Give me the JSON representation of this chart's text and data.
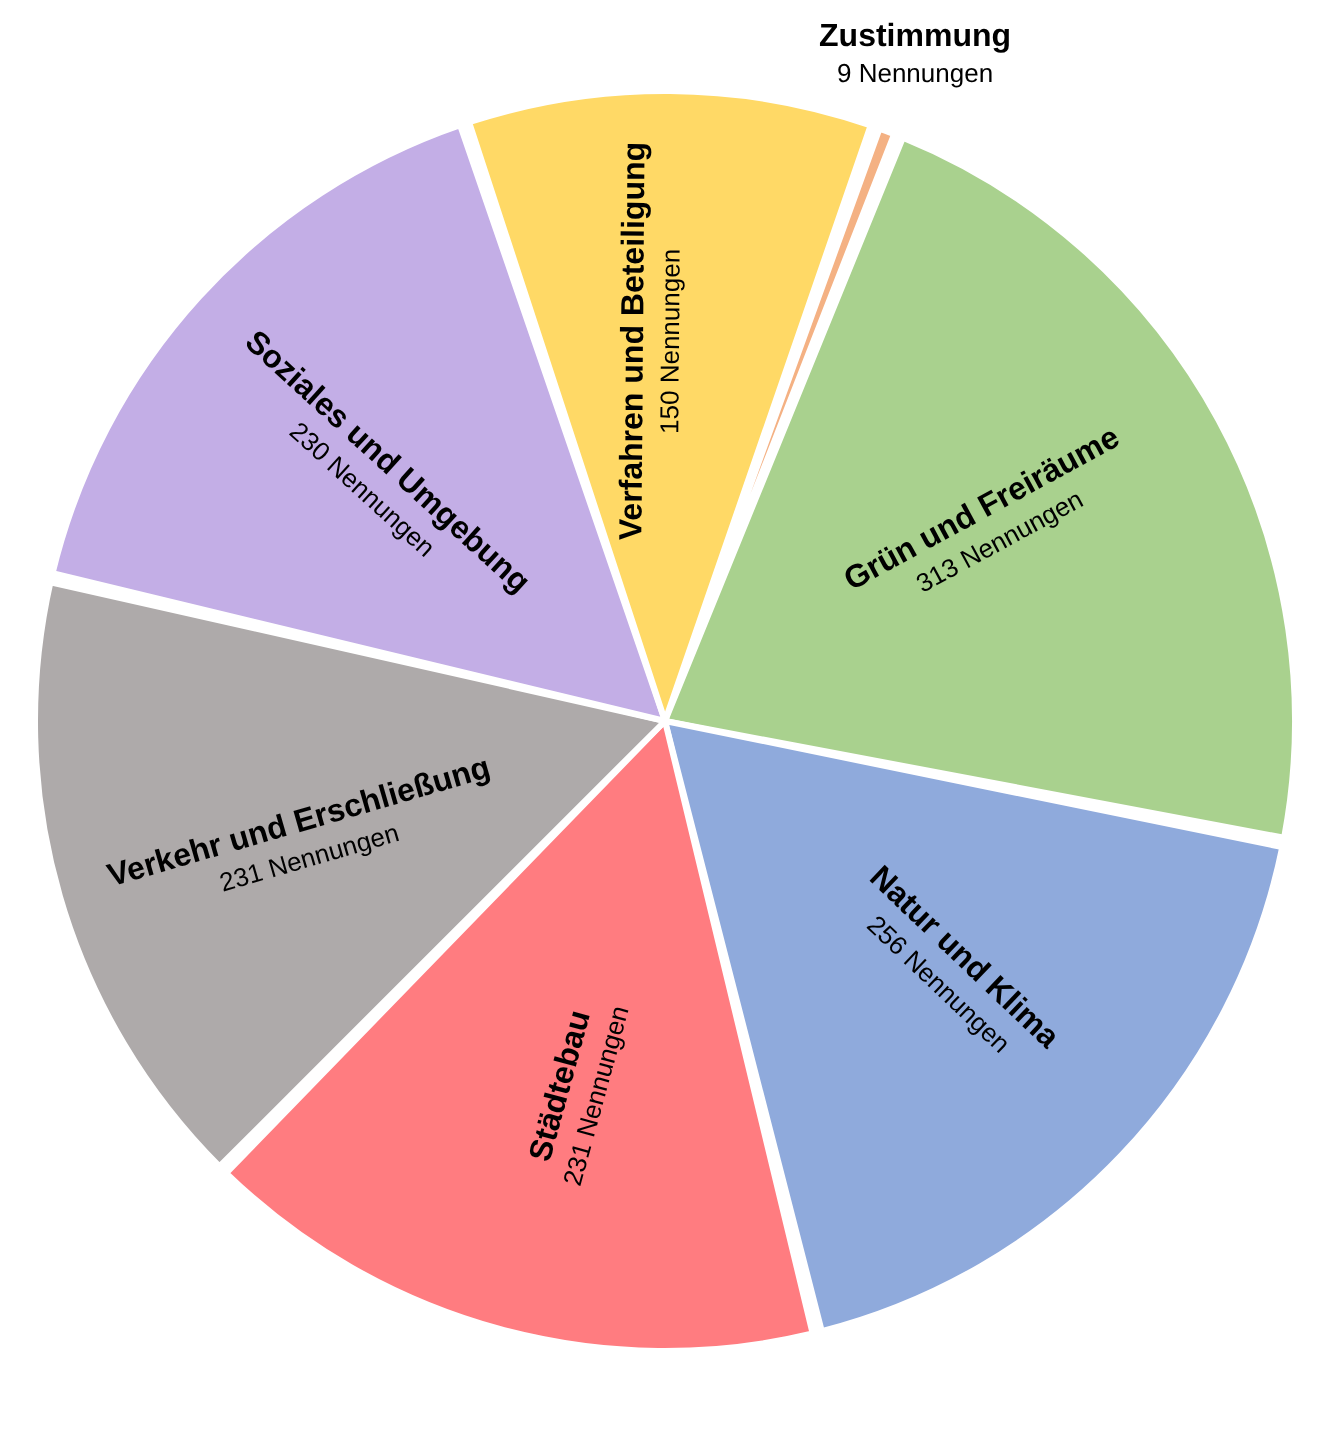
{
  "chart_data": {
    "type": "pie",
    "categories": [
      "Zustimmung",
      "Grün und Freiräume",
      "Natur und Klima",
      "Städtebau",
      "Verkehr und Erschließung",
      "Soziales und Umgebung",
      "Verfahren und Beteiligung"
    ],
    "values": [
      9,
      313,
      256,
      231,
      231,
      230,
      150
    ],
    "value_labels": [
      "9 Nennungen",
      "313 Nennungen",
      "256 Nennungen",
      "231 Nennungen",
      "231 Nennungen",
      "230 Nennungen",
      "150 Nennungen"
    ],
    "colors": [
      "#f4b183",
      "#a9d18e",
      "#8faadc",
      "#ff7c80",
      "#aeaaaa",
      "#c3aee6",
      "#ffd966"
    ]
  }
}
